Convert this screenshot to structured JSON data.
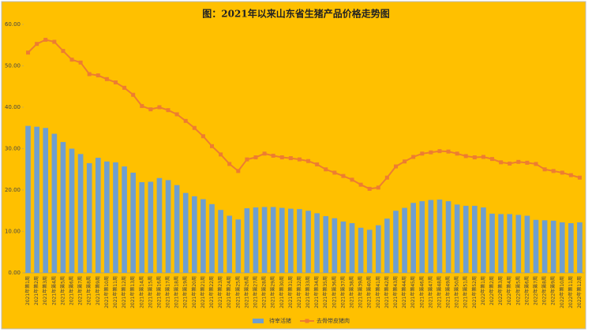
{
  "chart_data": {
    "type": "bar_line",
    "title": "图：2021年以来山东省生猪产品价格走势图",
    "categories": [
      "2021年第1周",
      "2021年第2周",
      "2021年第3周",
      "2021年第4周",
      "2021年第5周",
      "2021年第6周",
      "2021年第7周",
      "2021年第8周",
      "2021年第9周",
      "2021年第10周",
      "2021年第11周",
      "2021年第12周",
      "2021年第13周",
      "2021年第14周",
      "2021年第15周",
      "2021年第16周",
      "2021年第17周",
      "2021年第18周",
      "2021年第19周",
      "2021年第20周",
      "2021年第21周",
      "2021年第22周",
      "2021年第23周",
      "2021年第24周",
      "2021年第25周",
      "2021年第26周",
      "2021年第27周",
      "2021年第28周",
      "2021年第29周",
      "2021年第30周",
      "2021年第31周",
      "2021年第32周",
      "2021年第33周",
      "2021年第34周",
      "2021年第35周",
      "2021年第36周",
      "2021年第37周",
      "2021年第38周",
      "2021年第39周",
      "2021年第40周",
      "2021年第41周",
      "2021年第42周",
      "2021年第43周",
      "2021年第44周",
      "2021年第45周",
      "2021年第46周",
      "2021年第47周",
      "2021年第48周",
      "2021年第49周",
      "2021年第50周",
      "2021年第51周",
      "2021年第52周",
      "2022年第1周",
      "2022年第2周",
      "2022年第3周",
      "2022年第4周",
      "2022年第5周",
      "2022年第6周",
      "2022年第7周",
      "2022年第8周",
      "2022年第9周",
      "2022年第10周",
      "2022年第11周",
      "2022年第12周"
    ],
    "series": [
      {
        "name": "待宰活猪",
        "type": "bar",
        "color": "#6f9fcf",
        "values": [
          35.5,
          35.3,
          35.0,
          33.6,
          31.6,
          30.0,
          28.7,
          26.5,
          27.8,
          26.9,
          26.7,
          25.7,
          24.2,
          21.9,
          22.0,
          22.9,
          22.4,
          21.2,
          19.3,
          18.5,
          17.8,
          16.6,
          15.2,
          13.8,
          12.9,
          15.6,
          15.8,
          15.9,
          15.9,
          15.7,
          15.5,
          15.4,
          15.0,
          14.4,
          13.7,
          13.2,
          12.4,
          12.0,
          10.9,
          10.4,
          11.5,
          13.1,
          15.0,
          15.7,
          16.9,
          17.3,
          17.6,
          17.7,
          17.3,
          16.5,
          16.2,
          16.2,
          15.8,
          14.3,
          14.2,
          14.2,
          14.0,
          13.8,
          12.8,
          12.7,
          12.6,
          12.2,
          12.0,
          12.2
        ]
      },
      {
        "name": "去骨带皮猪肉",
        "type": "line",
        "color": "#ed7d31",
        "values": [
          53.2,
          55.3,
          56.3,
          55.8,
          53.6,
          51.5,
          50.8,
          48.0,
          47.7,
          46.8,
          46.0,
          44.7,
          43.0,
          40.3,
          39.5,
          40.0,
          39.3,
          38.3,
          36.7,
          35.0,
          33.0,
          30.6,
          28.6,
          26.3,
          24.6,
          27.4,
          27.9,
          28.8,
          28.3,
          27.9,
          27.7,
          27.4,
          27.0,
          26.2,
          25.0,
          24.2,
          23.4,
          22.5,
          21.3,
          20.3,
          20.6,
          23.0,
          25.7,
          26.9,
          28.0,
          28.8,
          29.1,
          29.4,
          29.3,
          28.8,
          28.2,
          27.9,
          28.0,
          27.5,
          26.7,
          26.4,
          26.8,
          26.6,
          26.3,
          25.0,
          24.6,
          24.2,
          23.6,
          23.0
        ]
      }
    ],
    "ylim": [
      0,
      60
    ],
    "yticks": [
      {
        "value": 0,
        "label": "0.00"
      },
      {
        "value": 10,
        "label": "10.00"
      },
      {
        "value": 20,
        "label": "20.00"
      },
      {
        "value": 30,
        "label": "30.00"
      },
      {
        "value": 40,
        "label": "40.00"
      },
      {
        "value": 50,
        "label": "50.00"
      },
      {
        "value": 60,
        "label": "60.00"
      }
    ],
    "legend": "bottom"
  }
}
